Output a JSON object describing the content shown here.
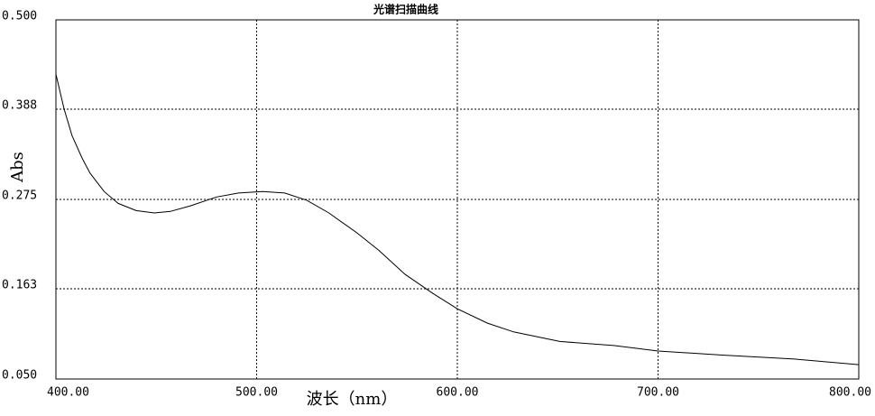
{
  "chart_data": {
    "type": "line",
    "title": "光谱扫描曲线",
    "x_label": "波长（nm）",
    "y_label": "Abs",
    "x": [
      400,
      404,
      408,
      413,
      417,
      424,
      431,
      440,
      449,
      457,
      467,
      480,
      491,
      503,
      514,
      525,
      536,
      550,
      561,
      574,
      588,
      600,
      615,
      628,
      651,
      678,
      700,
      732,
      768,
      800
    ],
    "series": [
      {
        "name": "Abs",
        "color": "#000000",
        "values": [
          0.432,
          0.389,
          0.355,
          0.327,
          0.308,
          0.285,
          0.27,
          0.261,
          0.258,
          0.26,
          0.267,
          0.278,
          0.283,
          0.285,
          0.283,
          0.274,
          0.258,
          0.233,
          0.211,
          0.181,
          0.157,
          0.138,
          0.12,
          0.109,
          0.097,
          0.092,
          0.085,
          0.08,
          0.075,
          0.068
        ]
      }
    ],
    "xlim": [
      400,
      800
    ],
    "xticks": [
      {
        "value": 400,
        "label": "400.00"
      },
      {
        "value": 500,
        "label": "500.00"
      },
      {
        "value": 600,
        "label": "600.00"
      },
      {
        "value": 700,
        "label": "700.00"
      },
      {
        "value": 800,
        "label": "800.00"
      }
    ],
    "ylim": [
      0.05,
      0.5
    ],
    "yticks": [
      {
        "value": 0.05,
        "label": "0.050"
      },
      0.163,
      0.275,
      0.388,
      {
        "value": 0.5,
        "label": "0.500"
      }
    ],
    "grid": true
  }
}
